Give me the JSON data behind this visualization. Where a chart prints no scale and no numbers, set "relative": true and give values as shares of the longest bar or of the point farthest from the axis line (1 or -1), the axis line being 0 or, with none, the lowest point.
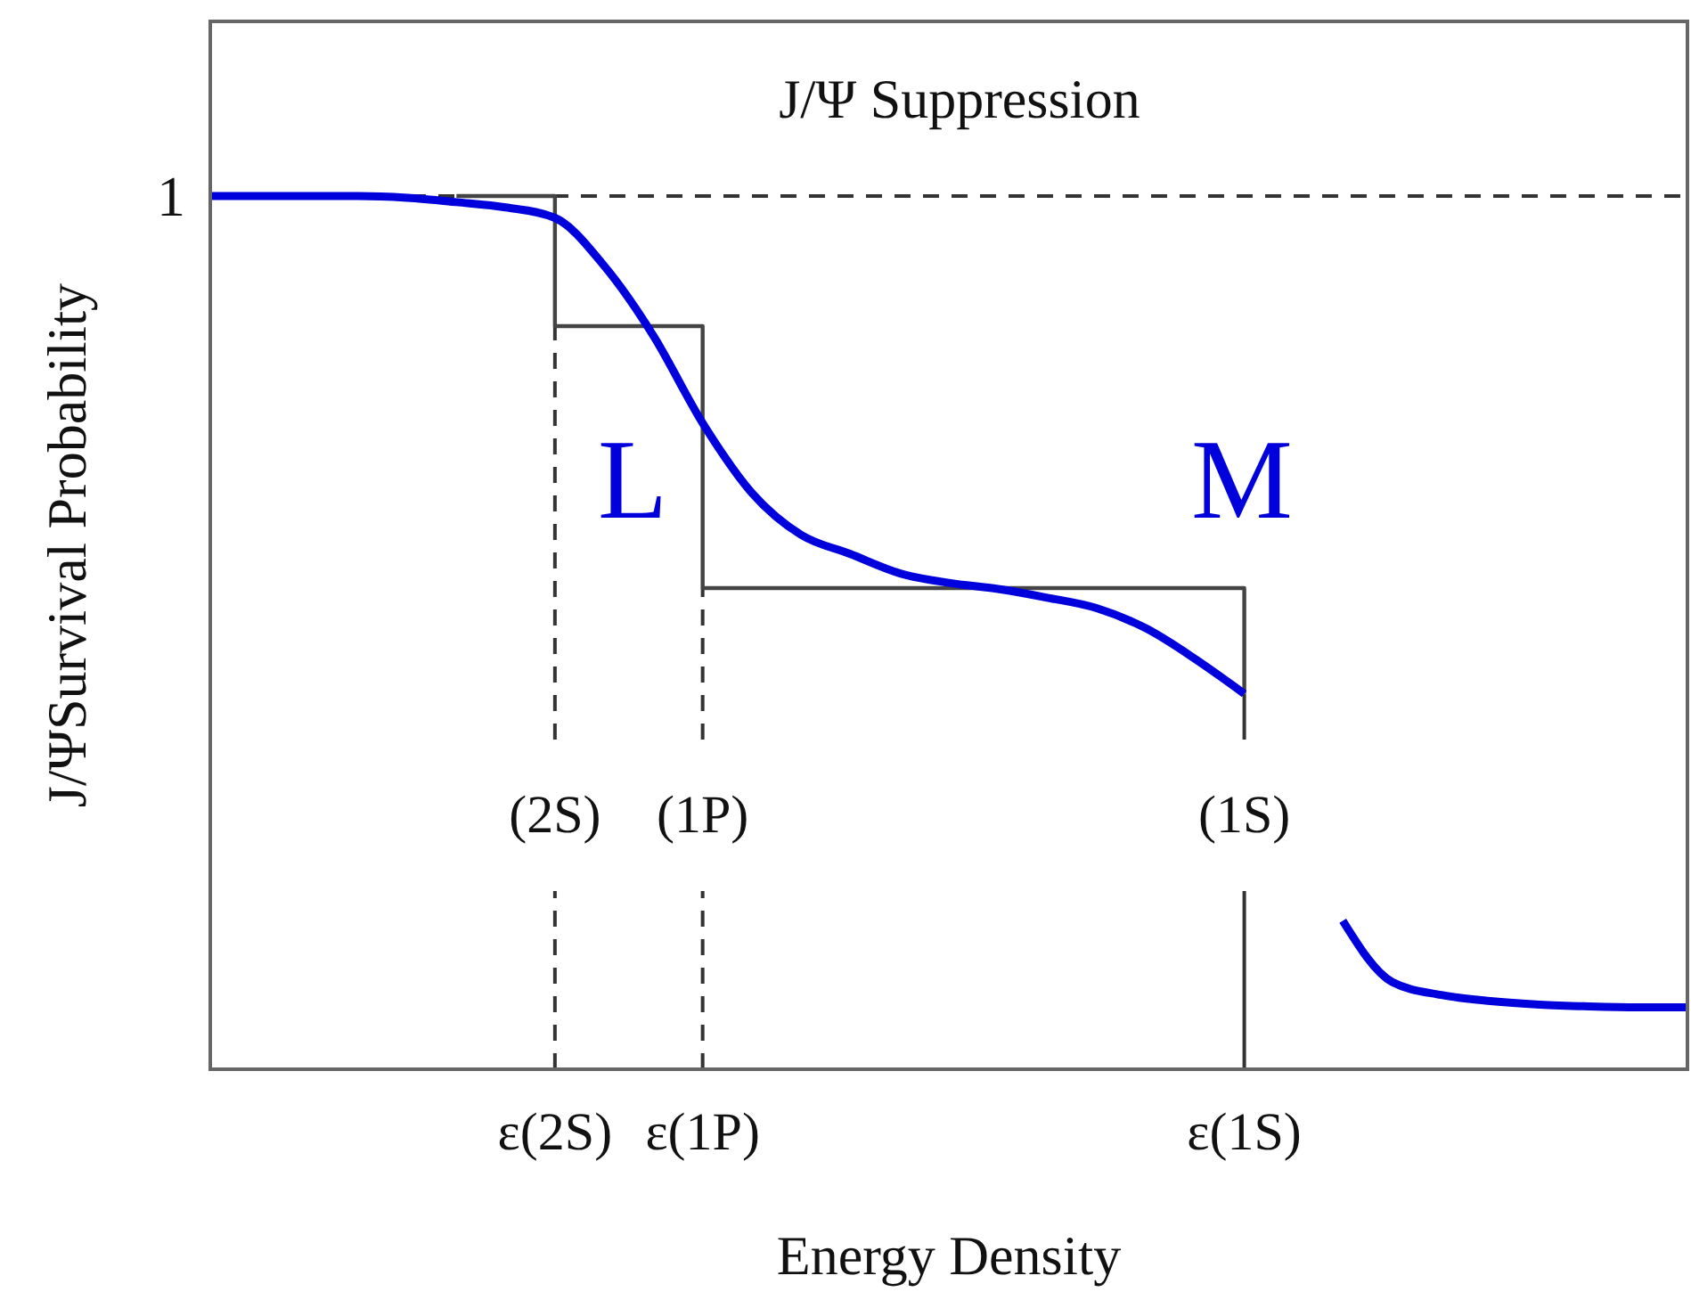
{
  "chart_data": {
    "type": "line",
    "title": "J/Ψ Suppression",
    "xlabel": "Energy Density",
    "ylabel": "J/ΨSurvival Probability",
    "relative": true,
    "categories": [
      null,
      null,
      null,
      null,
      null,
      null,
      null,
      "ε(2S)",
      null,
      null,
      "ε(1P)",
      null,
      null,
      null,
      null,
      null,
      null,
      null,
      null,
      null,
      null,
      "ε(1S)",
      null,
      null,
      null,
      null,
      null,
      null,
      null,
      null,
      null
    ],
    "series": [
      {
        "type": "step",
        "color": "#444444",
        "values": [
          null,
          null,
          null,
          null,
          null,
          1,
          1,
          0.851,
          0.851,
          0.851,
          0.551,
          0.551,
          0.551,
          0.551,
          0.551,
          0.551,
          0.551,
          0.551,
          0.551,
          0.551,
          0.551,
          0.43,
          null,
          null,
          null,
          null,
          null,
          null,
          null,
          null,
          null
        ]
      },
      {
        "color": "#0000dd",
        "values": [
          1,
          1,
          1,
          1,
          0.998,
          0.993,
          0.987,
          0.975,
          0.92,
          0.84,
          0.74,
          0.66,
          0.612,
          0.59,
          0.568,
          0.557,
          0.55,
          0.54,
          0.528,
          0.505,
          0.47,
          0.43,
          null,
          0.17,
          0.1,
          0.085,
          0.078,
          0.074,
          0.072,
          0.071,
          0.071
        ]
      }
    ],
    "ref_lines": [
      {
        "axis": "y",
        "value": 1,
        "line_style": "dashed"
      },
      {
        "axis": "x",
        "value": "ε(2S)",
        "label": "(2S)",
        "line_style": "dashed"
      },
      {
        "axis": "x",
        "value": "ε(1P)",
        "label": "(1P)",
        "line_style": "dashed"
      },
      {
        "axis": "x",
        "value": "ε(1S)",
        "label": "(1S)",
        "line_style": "solid"
      }
    ],
    "annotations": [
      "1",
      "L",
      "M"
    ],
    "marker": "none",
    "line_style": "solid"
  }
}
